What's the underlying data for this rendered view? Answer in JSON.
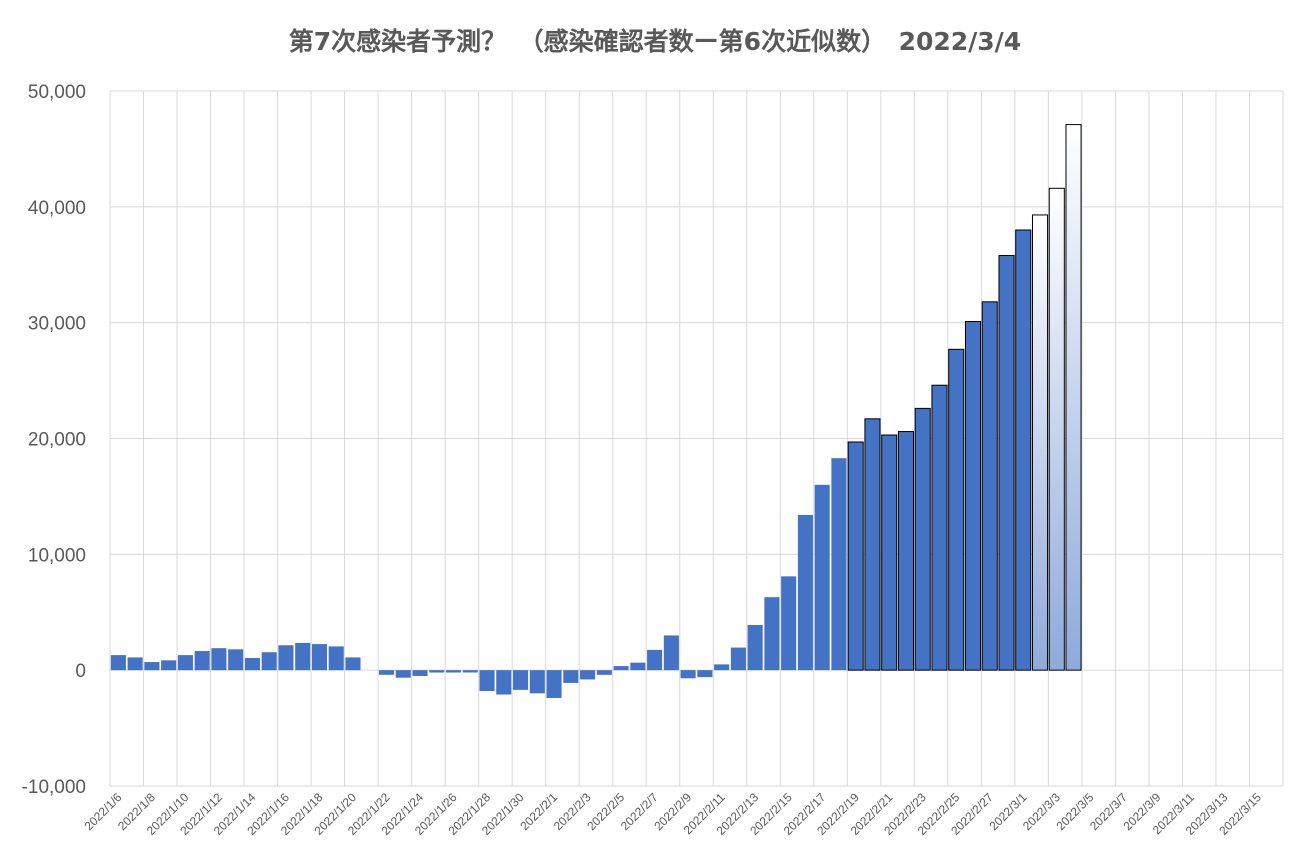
{
  "chart_data": {
    "type": "bar",
    "title": "第7次感染者予測？　（感染確認者数ー第6次近似数）　2022/3/4",
    "xlabel": "",
    "ylabel": "",
    "ylim": [
      -10000,
      50000
    ],
    "yticks": [
      50000,
      40000,
      30000,
      20000,
      10000,
      0,
      -10000
    ],
    "ytick_labels": [
      "50,000",
      "40,000",
      "30,000",
      "20,000",
      "10,000",
      "0",
      "-10,000"
    ],
    "grid": true,
    "legend": "none",
    "categories": [
      "2022/1/6",
      "2022/1/7",
      "2022/1/8",
      "2022/1/9",
      "2022/1/10",
      "2022/1/11",
      "2022/1/12",
      "2022/1/13",
      "2022/1/14",
      "2022/1/15",
      "2022/1/16",
      "2022/1/17",
      "2022/1/18",
      "2022/1/19",
      "2022/1/20",
      "2022/1/21",
      "2022/1/22",
      "2022/1/23",
      "2022/1/24",
      "2022/1/25",
      "2022/1/26",
      "2022/1/27",
      "2022/1/28",
      "2022/1/29",
      "2022/1/30",
      "2022/1/31",
      "2022/2/1",
      "2022/2/2",
      "2022/2/3",
      "2022/2/4",
      "2022/2/5",
      "2022/2/6",
      "2022/2/7",
      "2022/2/8",
      "2022/2/9",
      "2022/2/10",
      "2022/2/11",
      "2022/2/12",
      "2022/2/13",
      "2022/2/14",
      "2022/2/15",
      "2022/2/16",
      "2022/2/17",
      "2022/2/18",
      "2022/2/19",
      "2022/2/20",
      "2022/2/21",
      "2022/2/22",
      "2022/2/23",
      "2022/2/24",
      "2022/2/25",
      "2022/2/26",
      "2022/2/27",
      "2022/2/28",
      "2022/3/1",
      "2022/3/2",
      "2022/3/3",
      "2022/3/4",
      "2022/3/5",
      "2022/3/6",
      "2022/3/7",
      "2022/3/8",
      "2022/3/9",
      "2022/3/10",
      "2022/3/11",
      "2022/3/12",
      "2022/3/13",
      "2022/3/14",
      "2022/3/15",
      "2022/3/16"
    ],
    "series": [
      {
        "color": "#4472C4",
        "values": [
          1300,
          1100,
          700,
          850,
          1300,
          1650,
          1900,
          1800,
          1050,
          1550,
          2150,
          2350,
          2250,
          2050,
          1100,
          null,
          -400,
          -650,
          -500,
          -200,
          -200,
          -200,
          -1800,
          -2100,
          -1700,
          -2000,
          -2400,
          -1100,
          -800,
          -400,
          350,
          650,
          1750,
          3000,
          -700,
          -600,
          500,
          1950,
          3900,
          6300,
          8100,
          13400,
          16000,
          18300,
          19700,
          21700,
          20300,
          20600,
          22600,
          24600,
          27700,
          30100,
          31800,
          35800,
          38000,
          39300,
          41600,
          47100,
          null,
          null,
          null,
          null,
          null,
          null,
          null,
          null,
          null,
          null,
          null,
          null
        ]
      }
    ],
    "outlined_from_category": "2022/2/19",
    "projected_from_category": "2022/3/2",
    "x_tick_labels": [
      "2022/1/6",
      "2022/1/8",
      "2022/1/10",
      "2022/1/12",
      "2022/1/14",
      "2022/1/16",
      "2022/1/18",
      "2022/1/20",
      "2022/1/22",
      "2022/1/24",
      "2022/1/26",
      "2022/1/28",
      "2022/1/30",
      "2022/2/1",
      "2022/2/3",
      "2022/2/5",
      "2022/2/7",
      "2022/2/9",
      "2022/2/11",
      "2022/2/13",
      "2022/2/15",
      "2022/2/17",
      "2022/2/19",
      "2022/2/21",
      "2022/2/23",
      "2022/2/25",
      "2022/2/27",
      "2022/3/1",
      "2022/3/3",
      "2022/3/5",
      "2022/3/7",
      "2022/3/9",
      "2022/3/11",
      "2022/3/13",
      "2022/3/15"
    ],
    "colors": {
      "bar": "#4472C4",
      "bar_outline": "#000000",
      "projection_top": "#FFFFFF",
      "projection_bottom": "#8EA9DB",
      "grid": "#D9D9D9",
      "text": "#595959"
    }
  }
}
